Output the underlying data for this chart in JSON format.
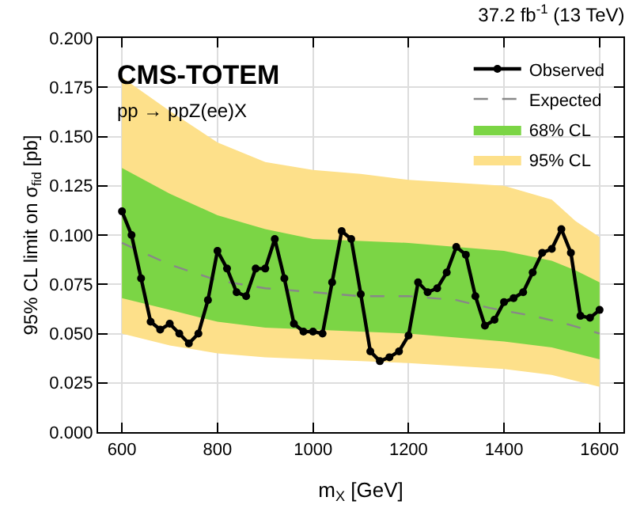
{
  "chart_data": {
    "type": "line",
    "title": "37.2 fb$^{-1}$ (13 TeV)",
    "xlabel": "m$_{X}$ [GeV]",
    "ylabel": "95% CL limit on σ$_{fid}$ [pb]",
    "annotations": [
      "CMS-TOTEM",
      "pp → ppZ(ee)X"
    ],
    "xlim": [
      550,
      1650
    ],
    "xticks": [
      600,
      800,
      1000,
      1200,
      1400,
      1600
    ],
    "ylim": [
      0,
      0.2
    ],
    "yticks": [
      {
        "value": 0,
        "label": "0.000"
      },
      {
        "value": 0.025,
        "label": "0.025"
      },
      {
        "value": 0.05,
        "label": "0.050"
      },
      {
        "value": 0.075,
        "label": "0.075"
      },
      {
        "value": 0.1,
        "label": "0.100"
      },
      {
        "value": 0.125,
        "label": "0.125"
      },
      {
        "value": 0.15,
        "label": "0.150"
      },
      {
        "value": 0.175,
        "label": "0.175"
      },
      {
        "value": 0.2,
        "label": "0.200"
      }
    ],
    "grid": true,
    "legend": "top right",
    "series": [
      {
        "name": "95% CL",
        "type": "area",
        "color": "#fde08a",
        "x": [
          600,
          700,
          800,
          900,
          1000,
          1100,
          1200,
          1400,
          1500,
          1550,
          1600
        ],
        "values": [
          null,
          null,
          null,
          null,
          null,
          null,
          null,
          null,
          null,
          null,
          null
        ],
        "lower": [
          0.05,
          0.044,
          0.04,
          0.038,
          0.037,
          0.036,
          0.035,
          0.032,
          0.029,
          0.026,
          0.023
        ],
        "upper": [
          0.18,
          0.163,
          0.147,
          0.137,
          0.133,
          0.131,
          0.128,
          0.125,
          0.118,
          0.107,
          0.099
        ]
      },
      {
        "name": "68% CL",
        "type": "area",
        "color": "#7bd545",
        "x": [
          600,
          700,
          800,
          900,
          1000,
          1100,
          1200,
          1400,
          1500,
          1550,
          1600
        ],
        "values": [
          null,
          null,
          null,
          null,
          null,
          null,
          null,
          null,
          null,
          null,
          null
        ],
        "lower": [
          0.068,
          0.062,
          0.056,
          0.053,
          0.052,
          0.051,
          0.05,
          0.046,
          0.043,
          0.04,
          0.037
        ],
        "upper": [
          0.134,
          0.121,
          0.11,
          0.103,
          0.098,
          0.097,
          0.096,
          0.092,
          0.087,
          0.082,
          0.076
        ]
      },
      {
        "name": "Expected",
        "type": "line",
        "color": "#888888",
        "line_style": "dashed",
        "marker": "none",
        "x": [
          600,
          700,
          800,
          900,
          1000,
          1100,
          1200,
          1300,
          1370,
          1460,
          1530,
          1600
        ],
        "values": [
          0.096,
          0.085,
          0.077,
          0.073,
          0.071,
          0.069,
          0.069,
          0.067,
          0.063,
          0.059,
          0.055,
          0.05
        ]
      },
      {
        "name": "Observed",
        "color": "#000000",
        "line_style": "solid",
        "marker": "circle",
        "x": [
          600,
          620,
          640,
          660,
          680,
          700,
          720,
          740,
          760,
          780,
          800,
          820,
          840,
          860,
          880,
          900,
          920,
          940,
          960,
          980,
          1000,
          1020,
          1040,
          1060,
          1080,
          1100,
          1120,
          1140,
          1160,
          1180,
          1200,
          1220,
          1240,
          1260,
          1280,
          1300,
          1320,
          1340,
          1360,
          1380,
          1400,
          1420,
          1440,
          1460,
          1480,
          1500,
          1520,
          1540,
          1560,
          1580,
          1600
        ],
        "values": [
          0.112,
          0.1,
          0.078,
          0.056,
          0.052,
          0.055,
          0.05,
          0.045,
          0.05,
          0.067,
          0.092,
          0.083,
          0.071,
          0.069,
          0.083,
          0.083,
          0.098,
          0.078,
          0.055,
          0.051,
          0.051,
          0.05,
          0.076,
          0.102,
          0.098,
          0.07,
          0.041,
          0.036,
          0.038,
          0.041,
          0.049,
          0.076,
          0.071,
          0.073,
          0.081,
          0.094,
          0.09,
          0.069,
          0.054,
          0.057,
          0.066,
          0.068,
          0.071,
          0.081,
          0.091,
          0.093,
          0.103,
          0.091,
          0.059,
          0.058,
          0.062
        ]
      }
    ]
  }
}
